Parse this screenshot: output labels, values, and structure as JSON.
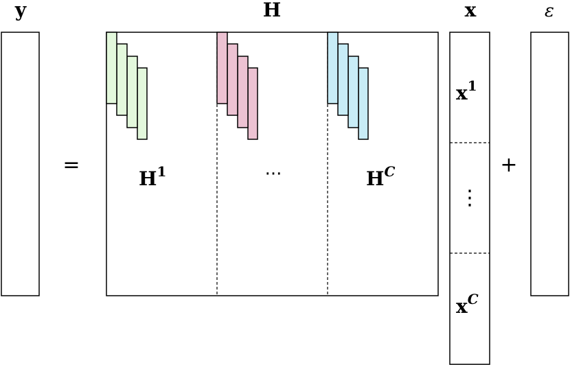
{
  "labels": {
    "y": "y",
    "H": "H",
    "x": "x",
    "epsilon": "ε",
    "equals": "=",
    "plus": "+"
  },
  "blocks": {
    "h1_base": "H",
    "h1_sup": "1",
    "middle_dots": "···",
    "hc_base": "H",
    "hc_sup": "C"
  },
  "x_blocks": {
    "x1_base": "x",
    "x1_sup": "1",
    "vdots": "⋮",
    "xc_base": "x",
    "xc_sup": "C"
  },
  "colors": {
    "green": "#e3f8dc",
    "pink": "#ecc2d2",
    "blue": "#c8ecf6",
    "stroke": "#000000"
  }
}
